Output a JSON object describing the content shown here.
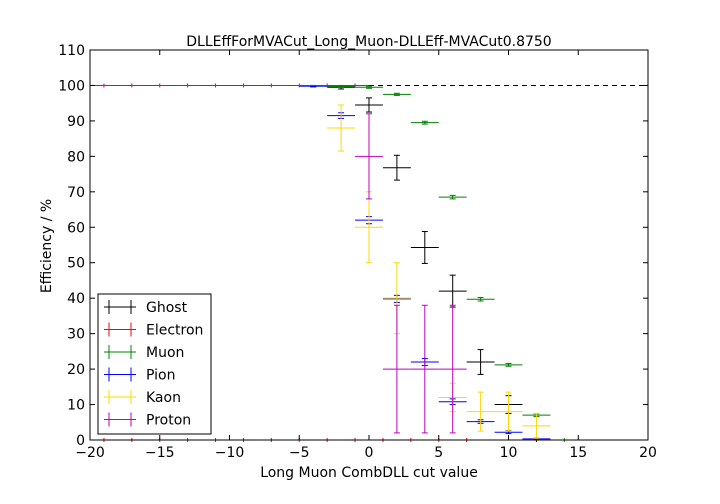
{
  "chart_data": {
    "type": "scatter",
    "title": "DLLEffForMVACut_Long_Muon-DLLEff-MVACut0.8750",
    "xlabel": "Long Muon CombDLL cut value",
    "ylabel": "Efficiency / %",
    "xlim": [
      -20,
      20
    ],
    "ylim": [
      0,
      110
    ],
    "xticks": [
      "−20",
      "−15",
      "−10",
      "−5",
      "0",
      "5",
      "10",
      "15",
      "20"
    ],
    "xtick_values": [
      -20,
      -15,
      -10,
      -5,
      0,
      5,
      10,
      15,
      20
    ],
    "yticks": [
      "0",
      "10",
      "20",
      "30",
      "40",
      "50",
      "60",
      "70",
      "80",
      "90",
      "100",
      "110"
    ],
    "ytick_values": [
      0,
      10,
      20,
      30,
      40,
      50,
      60,
      70,
      80,
      90,
      100,
      110
    ],
    "reference_line": {
      "y": 100,
      "style": "dashed"
    },
    "legend_position": "lower-left",
    "series": [
      {
        "name": "Ghost",
        "color": "#000000",
        "points": [
          {
            "x": -2,
            "y": 99.5,
            "yerr": 0.5
          },
          {
            "x": 0,
            "y": 94.5,
            "yerr": 2.0
          },
          {
            "x": 2,
            "y": 76.8,
            "yerr": 3.5
          },
          {
            "x": 4,
            "y": 54.3,
            "yerr": 4.5
          },
          {
            "x": 6,
            "y": 42.0,
            "yerr": 4.5
          },
          {
            "x": 8,
            "y": 22.0,
            "yerr": 3.5
          },
          {
            "x": 10,
            "y": 10.0,
            "yerr": 2.5
          },
          {
            "x": 12,
            "y": 0.0,
            "yerr": 0.0
          }
        ]
      },
      {
        "name": "Electron",
        "color": "#ff0000",
        "points": [
          {
            "x": -19,
            "y": 0.0,
            "yerr": 0.0
          },
          {
            "x": -17,
            "y": 0.0,
            "yerr": 0.0
          },
          {
            "x": -15,
            "y": 0.0,
            "yerr": 0.0
          },
          {
            "x": -13,
            "y": 0.0,
            "yerr": 0.0
          },
          {
            "x": -11,
            "y": 0.0,
            "yerr": 0.0
          },
          {
            "x": -9,
            "y": 0.0,
            "yerr": 0.0
          },
          {
            "x": -7,
            "y": 0.0,
            "yerr": 0.0
          },
          {
            "x": -5,
            "y": 0.0,
            "yerr": 0.0
          },
          {
            "x": -3,
            "y": 0.0,
            "yerr": 0.0
          },
          {
            "x": -1,
            "y": 0.0,
            "yerr": 0.0
          },
          {
            "x": 1,
            "y": 0.0,
            "yerr": 0.0
          },
          {
            "x": 3,
            "y": 0.0,
            "yerr": 0.0
          },
          {
            "x": 5,
            "y": 0.0,
            "yerr": 0.0
          },
          {
            "x": 7,
            "y": 0.0,
            "yerr": 0.0
          }
        ]
      },
      {
        "name": "Muon",
        "color": "#008000",
        "points": [
          {
            "x": -4,
            "y": 99.8,
            "yerr": 0.2
          },
          {
            "x": -2,
            "y": 99.7,
            "yerr": 0.2
          },
          {
            "x": 0,
            "y": 99.5,
            "yerr": 0.3
          },
          {
            "x": 2,
            "y": 97.5,
            "yerr": 0.3
          },
          {
            "x": 4,
            "y": 89.5,
            "yerr": 0.4
          },
          {
            "x": 6,
            "y": 68.5,
            "yerr": 0.5
          },
          {
            "x": 8,
            "y": 39.7,
            "yerr": 0.5
          },
          {
            "x": 10,
            "y": 21.2,
            "yerr": 0.4
          },
          {
            "x": 12,
            "y": 7.0,
            "yerr": 0.4
          },
          {
            "x": 14,
            "y": 0.0,
            "yerr": 0.0
          }
        ]
      },
      {
        "name": "Pion",
        "color": "#0000ff",
        "points": [
          {
            "x": -4,
            "y": 99.8,
            "yerr": 0.2
          },
          {
            "x": -2,
            "y": 91.5,
            "yerr": 0.8
          },
          {
            "x": 0,
            "y": 62.0,
            "yerr": 1.0
          },
          {
            "x": 2,
            "y": 39.8,
            "yerr": 1.0
          },
          {
            "x": 4,
            "y": 22.0,
            "yerr": 1.0
          },
          {
            "x": 6,
            "y": 10.8,
            "yerr": 0.8
          },
          {
            "x": 8,
            "y": 5.2,
            "yerr": 0.5
          },
          {
            "x": 10,
            "y": 2.2,
            "yerr": 0.4
          },
          {
            "x": 12,
            "y": 0.3,
            "yerr": 0.2
          }
        ]
      },
      {
        "name": "Kaon",
        "color": "#ffd700",
        "points": [
          {
            "x": -2,
            "y": 88.0,
            "yerr": 6.5
          },
          {
            "x": 0,
            "y": 60.0,
            "yerr": 10.0
          },
          {
            "x": 2,
            "y": 40.0,
            "yerr": 10.0
          },
          {
            "x": 6,
            "y": 12.0,
            "yerr": 4.0
          },
          {
            "x": 8,
            "y": 8.0,
            "yerr": 5.5
          },
          {
            "x": 10,
            "y": 8.0,
            "yerr": 5.5
          },
          {
            "x": 12,
            "y": 4.0,
            "yerr": 3.5
          }
        ]
      },
      {
        "name": "Proton",
        "color": "#bf00bf",
        "points": [
          {
            "x": -19,
            "y": 100.0,
            "yerr": 0.0
          },
          {
            "x": -17,
            "y": 100.0,
            "yerr": 0.0
          },
          {
            "x": -15,
            "y": 100.0,
            "yerr": 0.0
          },
          {
            "x": -13,
            "y": 100.0,
            "yerr": 0.0
          },
          {
            "x": -11,
            "y": 100.0,
            "yerr": 0.0
          },
          {
            "x": -9,
            "y": 100.0,
            "yerr": 0.0
          },
          {
            "x": -7,
            "y": 100.0,
            "yerr": 0.0
          },
          {
            "x": -5,
            "y": 100.0,
            "yerr": 0.0
          },
          {
            "x": -3,
            "y": 100.0,
            "yerr": 0.0
          },
          {
            "x": -1,
            "y": 100.0,
            "yerr": 0.0
          },
          {
            "x": 0,
            "y": 80.0,
            "yerr": 12.0
          },
          {
            "x": 2,
            "y": 20.0,
            "yerr": 18.0
          },
          {
            "x": 4,
            "y": 20.0,
            "yerr": 18.0
          },
          {
            "x": 6,
            "y": 20.0,
            "yerr": 18.0
          }
        ]
      }
    ]
  }
}
